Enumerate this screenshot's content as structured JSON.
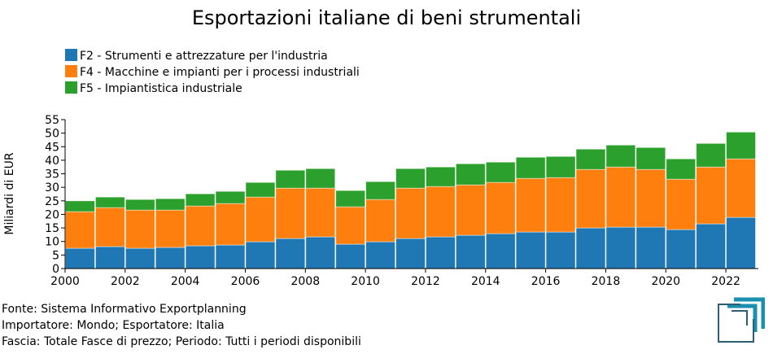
{
  "chart_data": {
    "type": "bar",
    "stacked": true,
    "title": "Esportazioni italiane di beni strumentali",
    "ylabel": "Miliardi di EUR",
    "xlabel": "",
    "ylim": [
      0,
      55
    ],
    "yticks": [
      0,
      5,
      10,
      15,
      20,
      25,
      30,
      35,
      40,
      45,
      50,
      55
    ],
    "xticks": [
      2000,
      2002,
      2004,
      2006,
      2008,
      2010,
      2012,
      2014,
      2016,
      2018,
      2020,
      2022
    ],
    "xlim": [
      2000,
      2023
    ],
    "legend_position": "top-left",
    "categories": [
      2000,
      2001,
      2002,
      2003,
      2004,
      2005,
      2006,
      2007,
      2008,
      2009,
      2010,
      2011,
      2012,
      2013,
      2014,
      2015,
      2016,
      2017,
      2018,
      2019,
      2020,
      2021,
      2022
    ],
    "series": [
      {
        "name": "F2 - Strumenti e attrezzature per l'industria",
        "color": "#1f77b4",
        "values": [
          7.5,
          8.1,
          7.5,
          7.8,
          8.4,
          8.7,
          9.9,
          11.1,
          11.7,
          9.0,
          9.9,
          11.1,
          11.7,
          12.3,
          12.9,
          13.5,
          13.5,
          15.0,
          15.3,
          15.3,
          14.4,
          16.5,
          18.9
        ]
      },
      {
        "name": "F4 - Macchine e impianti per i processi industriali",
        "color": "#ff7f0e",
        "values": [
          13.5,
          14.4,
          14.1,
          13.8,
          14.7,
          15.3,
          16.5,
          18.6,
          18.0,
          13.8,
          15.6,
          18.6,
          18.6,
          18.6,
          18.9,
          19.8,
          20.1,
          21.6,
          22.2,
          21.3,
          18.6,
          21.0,
          21.6
        ]
      },
      {
        "name": "F5 - Impiantistica industriale",
        "color": "#2ca02c",
        "values": [
          4.0,
          3.9,
          3.9,
          4.2,
          4.5,
          4.5,
          5.4,
          6.6,
          7.2,
          6.0,
          6.6,
          7.2,
          7.2,
          7.8,
          7.5,
          7.8,
          7.8,
          7.5,
          8.1,
          8.1,
          7.5,
          8.7,
          9.9
        ]
      }
    ]
  },
  "footer": {
    "source": "Fonte: Sistema Informativo Exportplanning",
    "importer": "Importatore: Mondo; Esportatore: Italia",
    "band": "Fascia: Totale Fasce di prezzo; Periodo: Tutti i periodi disponibili"
  }
}
